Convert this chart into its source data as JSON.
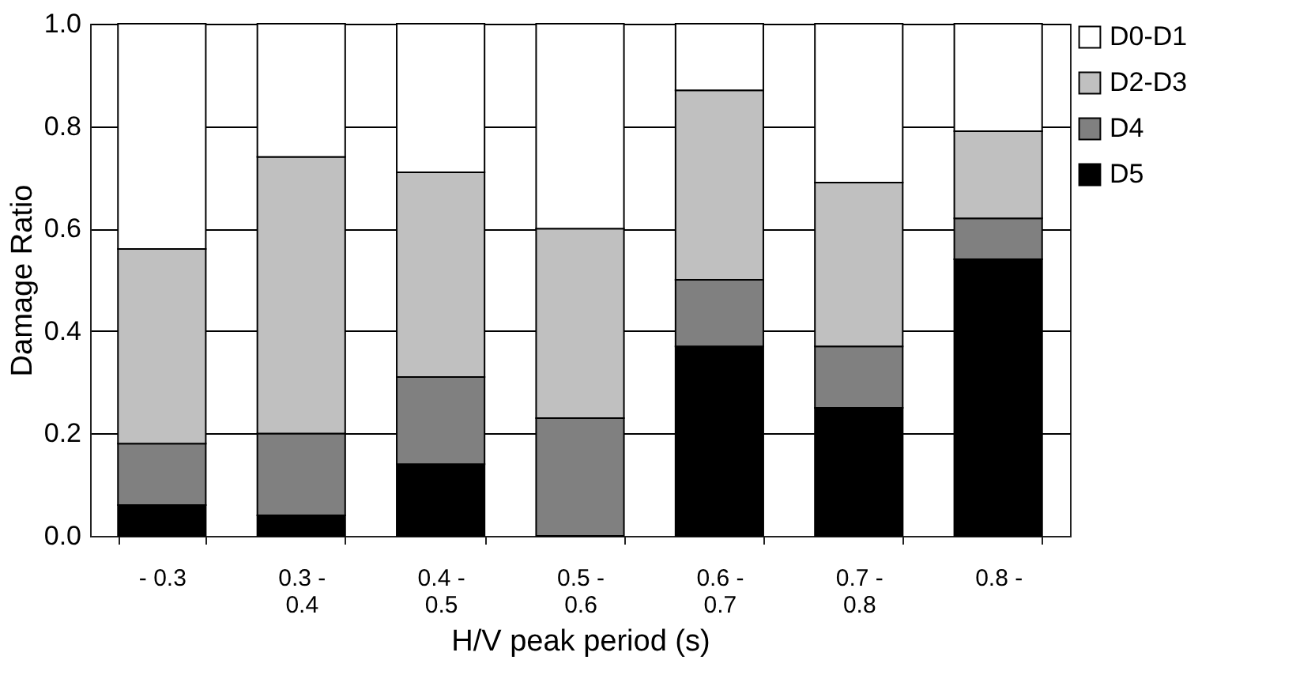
{
  "chart_data": {
    "type": "bar",
    "stacked": true,
    "xlabel": "H/V peak period (s)",
    "ylabel": "Damage Ratio",
    "categories": [
      "- 0.3",
      "0.3 - 0.4",
      "0.4 - 0.5",
      "0.5 - 0.6",
      "0.6 - 0.7",
      "0.7 - 0.8",
      "0.8 -"
    ],
    "series": [
      {
        "name": "D5",
        "color": "#000000",
        "values": [
          0.06,
          0.04,
          0.14,
          0,
          0.37,
          0.25,
          0.54
        ]
      },
      {
        "name": "D4",
        "color": "#808080",
        "values": [
          0.12,
          0.16,
          0.17,
          0.23,
          0.13,
          0.12,
          0.08
        ]
      },
      {
        "name": "D2-D3",
        "color": "#c0c0c0",
        "values": [
          0.38,
          0.54,
          0.4,
          0.37,
          0.37,
          0.32,
          0.17
        ]
      },
      {
        "name": "D0-D1",
        "color": "#ffffff",
        "values": [
          0.44,
          0.26,
          0.29,
          0.4,
          0.13,
          0.31,
          0.21
        ]
      }
    ],
    "ylim": [
      0,
      1
    ],
    "yticks": [
      {
        "value": 0,
        "label": "0.0"
      },
      0.2,
      0.4,
      0.6,
      0.8,
      {
        "value": 1,
        "label": "1.0"
      }
    ],
    "grid": "y",
    "legend": "right"
  }
}
